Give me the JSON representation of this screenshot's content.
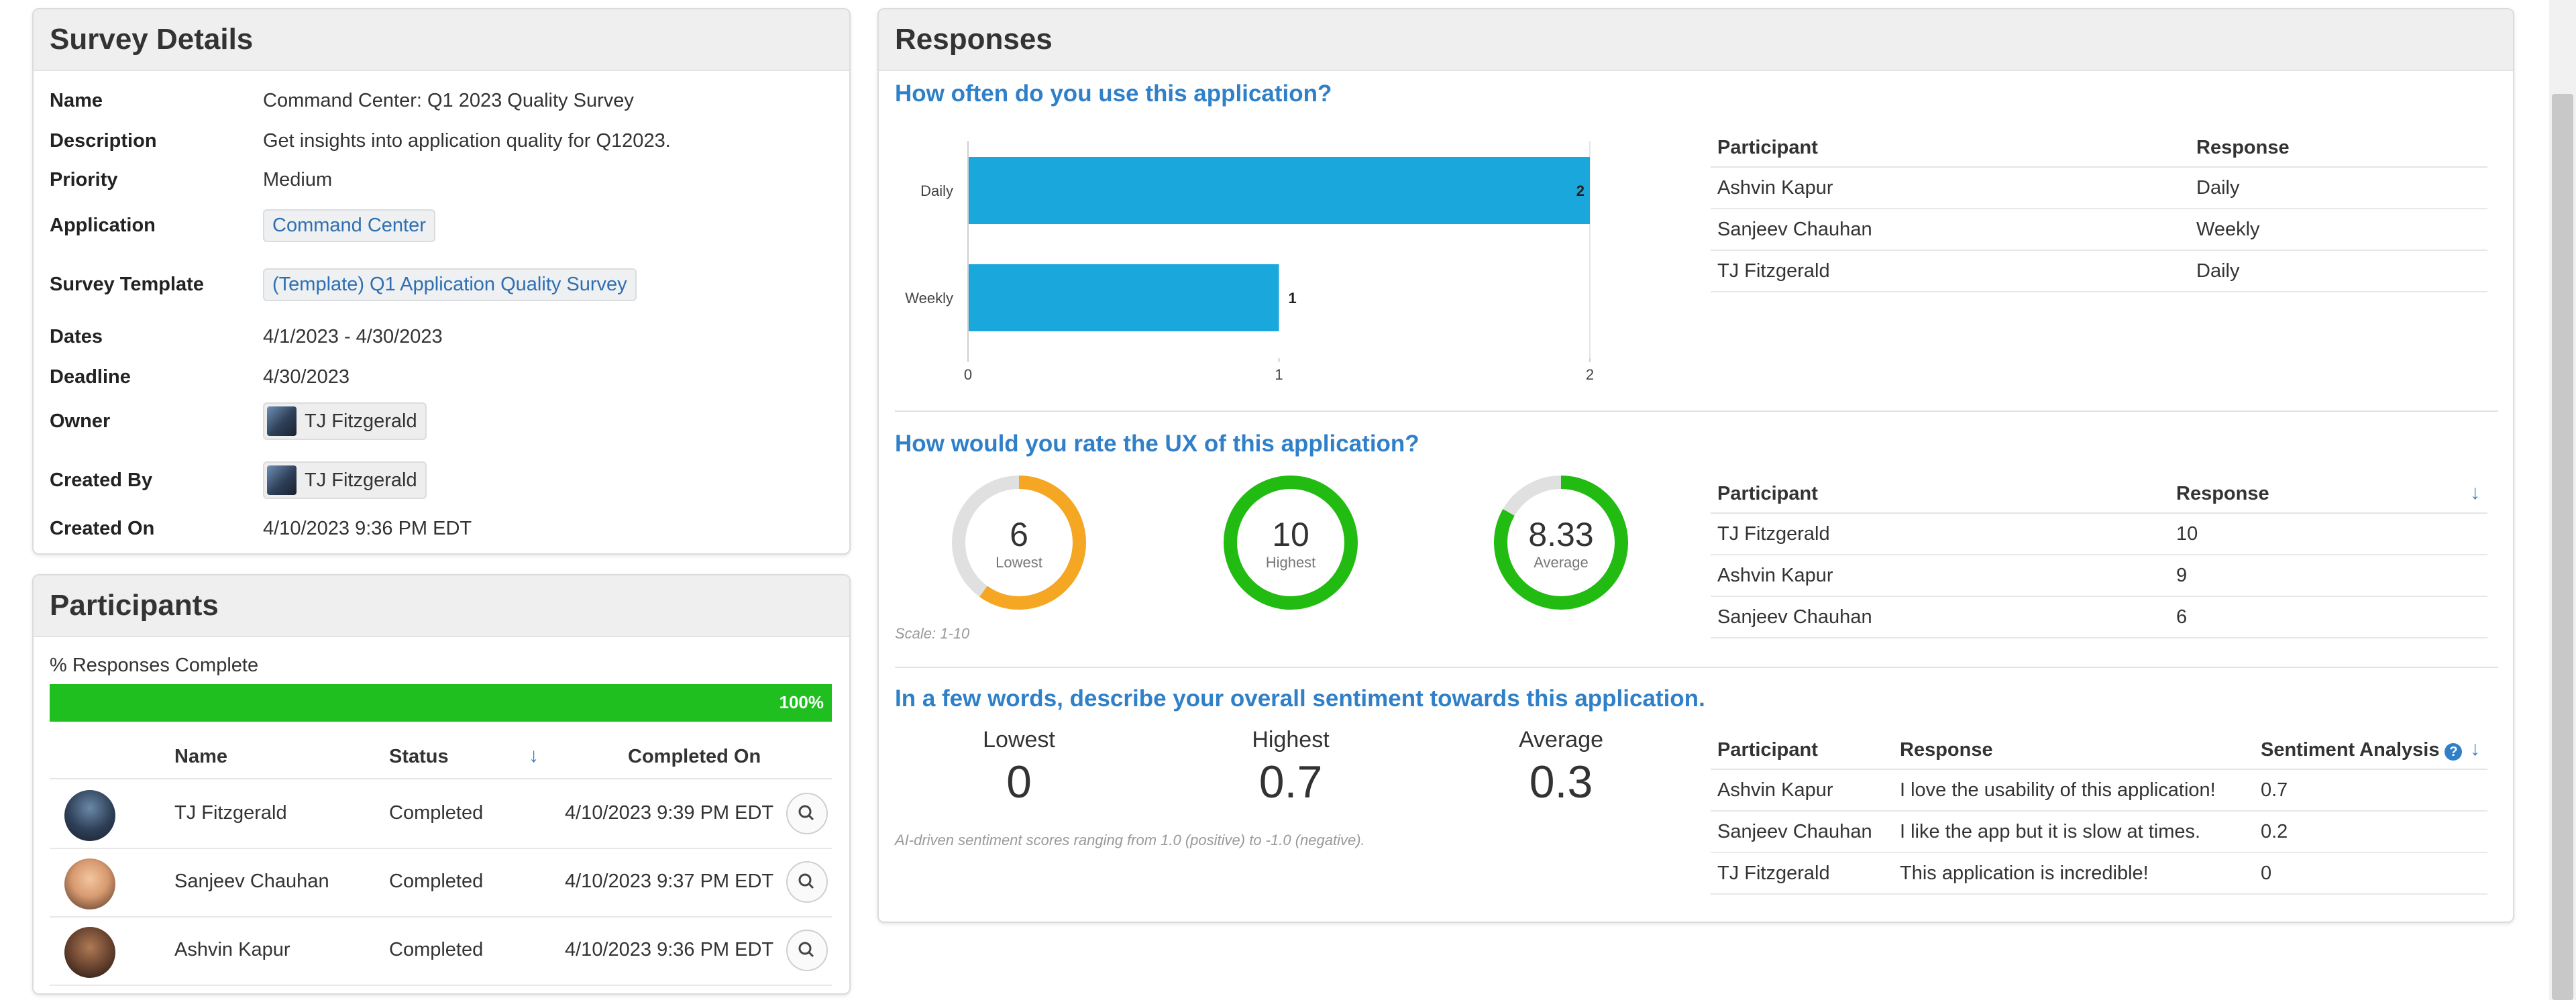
{
  "details": {
    "title": "Survey Details",
    "rows": [
      {
        "label": "Name",
        "value": "Command Center: Q1 2023 Quality Survey"
      },
      {
        "label": "Description",
        "value": "Get insights into application quality for Q12023."
      },
      {
        "label": "Priority",
        "value": "Medium"
      },
      {
        "label": "Application",
        "value": "Command Center"
      },
      {
        "label": "Survey Template",
        "value": "(Template) Q1 Application Quality Survey"
      },
      {
        "label": "Dates",
        "value": "4/1/2023 - 4/30/2023"
      },
      {
        "label": "Deadline",
        "value": "4/30/2023"
      },
      {
        "label": "Owner",
        "value": "TJ Fitzgerald"
      },
      {
        "label": "Created By",
        "value": "TJ Fitzgerald"
      },
      {
        "label": "Created On",
        "value": "4/10/2023 9:36 PM EDT"
      }
    ]
  },
  "participants": {
    "title": "Participants",
    "progress_label": "% Responses Complete",
    "progress_percent": 100,
    "progress_text": "100%",
    "columns": {
      "name": "Name",
      "status": "Status",
      "completed_on": "Completed On"
    },
    "rows": [
      {
        "name": "TJ Fitzgerald",
        "status": "Completed",
        "completed_on": "4/10/2023 9:39 PM EDT"
      },
      {
        "name": "Sanjeev Chauhan",
        "status": "Completed",
        "completed_on": "4/10/2023 9:37 PM EDT"
      },
      {
        "name": "Ashvin Kapur",
        "status": "Completed",
        "completed_on": "4/10/2023 9:36 PM EDT"
      }
    ]
  },
  "responses": {
    "title": "Responses",
    "q1": {
      "title": "How often do you use this application?",
      "table_headers": {
        "participant": "Participant",
        "response": "Response"
      },
      "rows": [
        {
          "participant": "Ashvin Kapur",
          "response": "Daily"
        },
        {
          "participant": "Sanjeev Chauhan",
          "response": "Weekly"
        },
        {
          "participant": "TJ Fitzgerald",
          "response": "Daily"
        }
      ]
    },
    "q2": {
      "title": "How would you rate the UX of this application?",
      "lowest": {
        "value": "6",
        "label": "Lowest",
        "fraction": 0.6,
        "color": "#f5a623"
      },
      "highest": {
        "value": "10",
        "label": "Highest",
        "fraction": 1.0,
        "color": "#22bb11"
      },
      "average": {
        "value": "8.33",
        "label": "Average",
        "fraction": 0.833,
        "color": "#22bb11"
      },
      "scale_note": "Scale: 1-10",
      "table_headers": {
        "participant": "Participant",
        "response": "Response"
      },
      "rows": [
        {
          "participant": "TJ Fitzgerald",
          "response": "10"
        },
        {
          "participant": "Ashvin Kapur",
          "response": "9"
        },
        {
          "participant": "Sanjeev Chauhan",
          "response": "6"
        }
      ]
    },
    "q3": {
      "title": "In a few words, describe your overall sentiment towards this application.",
      "lowest_label": "Lowest",
      "lowest_value": "0",
      "highest_label": "Highest",
      "highest_value": "0.7",
      "average_label": "Average",
      "average_value": "0.3",
      "note": "AI-driven sentiment scores ranging from 1.0 (positive) to -1.0 (negative).",
      "table_headers": {
        "participant": "Participant",
        "response": "Response",
        "sentiment": "Sentiment Analysis"
      },
      "rows": [
        {
          "participant": "Ashvin Kapur",
          "response": "I love the usability of this application!",
          "sentiment": "0.7"
        },
        {
          "participant": "Sanjeev Chauhan",
          "response": "I like the app but it is slow at times.",
          "sentiment": "0.2"
        },
        {
          "participant": "TJ Fitzgerald",
          "response": "This application is incredible!",
          "sentiment": "0"
        }
      ]
    }
  },
  "chart_data": {
    "type": "bar",
    "orientation": "horizontal",
    "categories": [
      "Daily",
      "Weekly"
    ],
    "values": [
      2,
      1
    ],
    "xlim": [
      0,
      2
    ],
    "xticks": [
      "0",
      "1",
      "2"
    ],
    "color": "#1aa7dc"
  }
}
